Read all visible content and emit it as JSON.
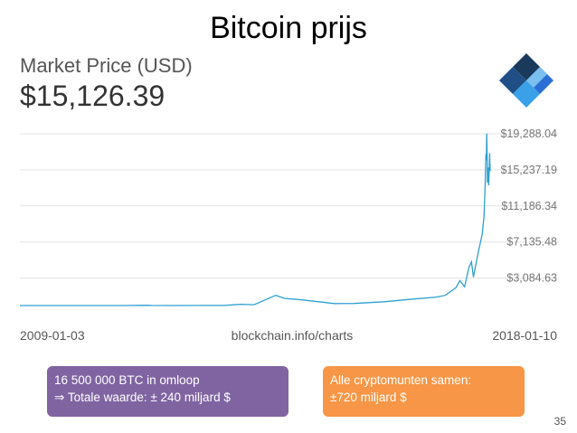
{
  "slide": {
    "title": "Bitcoin prijs",
    "page_number": "35"
  },
  "market": {
    "label": "Market Price (USD)",
    "value": "$15,126.39"
  },
  "logo": {
    "icon": "blockchain-logo-icon",
    "colors": [
      "#1a3a5c",
      "#2b6fd6",
      "#3aa0e8",
      "#8fd3f5"
    ]
  },
  "boxes": {
    "purple": {
      "line1": "16 500 000 BTC in omloop",
      "arrow": "⇒",
      "line2": "Totale waarde: ± 240 miljard $",
      "color": "#8064a2"
    },
    "orange": {
      "line1": "Alle cryptomunten samen:",
      "line2": "±720 miljard $",
      "color": "#f79646"
    }
  },
  "chart_data": {
    "type": "line",
    "xlabel": "",
    "ylabel": "",
    "source": "blockchain.info/charts",
    "x_start": "2009-01-03",
    "x_end": "2018-01-10",
    "ylim": [
      0,
      20500
    ],
    "y_ticks": [
      3084.63,
      7135.48,
      11186.34,
      15237.19,
      19288.04
    ],
    "y_tick_labels": [
      "$3,084.63",
      "$7,135.48",
      "$11,186.34",
      "$15,237.19",
      "$19,288.04"
    ],
    "grid": true,
    "line_color": "#2f9fd0",
    "series": [
      {
        "x": [
          "2009-01-03",
          "2010-06-01",
          "2011-01-01",
          "2011-06-08",
          "2011-07-15",
          "2011-11-01",
          "2012-06-01",
          "2012-12-01",
          "2013-04-01",
          "2013-07-01",
          "2013-11-30",
          "2014-02-01",
          "2014-06-01",
          "2015-01-15",
          "2015-06-01",
          "2016-01-01",
          "2016-06-15",
          "2017-01-01",
          "2017-03-01",
          "2017-05-15",
          "2017-06-12",
          "2017-07-15",
          "2017-08-15",
          "2017-09-01",
          "2017-09-15",
          "2017-10-15",
          "2017-11-15",
          "2017-11-28",
          "2017-12-07",
          "2017-12-10",
          "2017-12-12",
          "2017-12-14",
          "2017-12-17",
          "2017-12-20",
          "2017-12-22",
          "2017-12-24",
          "2017-12-27",
          "2017-12-30",
          "2018-01-03",
          "2018-01-06",
          "2018-01-10"
        ],
        "values": [
          0,
          0,
          0.3,
          30,
          14,
          3,
          6,
          13,
          140,
          90,
          1150,
          800,
          640,
          220,
          230,
          430,
          680,
          950,
          1150,
          2000,
          2800,
          2100,
          4300,
          4900,
          3200,
          5700,
          8000,
          10000,
          14000,
          16500,
          17000,
          16300,
          19300,
          16500,
          13800,
          14200,
          15500,
          13500,
          15000,
          17100,
          15126
        ]
      }
    ]
  }
}
